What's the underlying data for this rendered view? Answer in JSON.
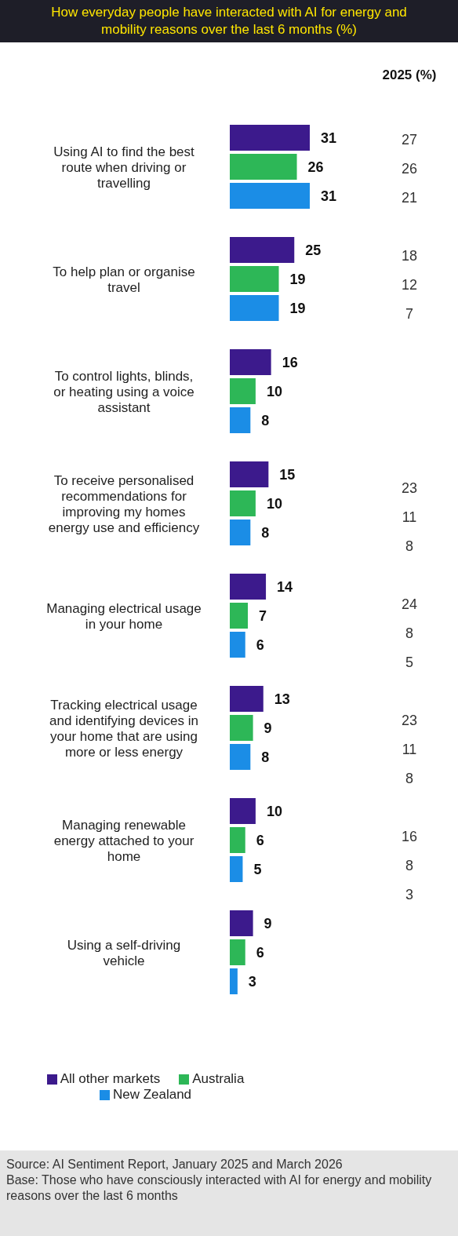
{
  "chart_data": [
    {
      "type": "bar",
      "orientation": "horizontal",
      "title": "How everyday people have interacted with AI for energy and mobility reasons over the last 6 months (%)",
      "categories": [
        "Using AI to find the best\nroute when driving or\ntravelling",
        "To help plan or organise\ntravel",
        "To control lights, blinds,\nor heating using a voice\nassistant",
        "To receive personalised\nrecommendations for\nimproving my homes\nenergy use and efficiency",
        "Managing electrical usage\nin your home",
        "Tracking electrical usage\nand identifying devices in\nyour home that are using\nmore or less energy",
        "Managing renewable\nenergy attached to your\nhome",
        "Using a self-driving\nvehicle"
      ],
      "series": [
        {
          "name": "All other markets",
          "color": "#3c1a8c",
          "values": [
            31,
            25,
            16,
            15,
            14,
            13,
            10,
            9
          ]
        },
        {
          "name": "Australia",
          "color": "#2db757",
          "values": [
            26,
            19,
            10,
            10,
            7,
            9,
            6,
            6
          ]
        },
        {
          "name": "New Zealand",
          "color": "#1b8de6",
          "values": [
            31,
            19,
            8,
            8,
            6,
            8,
            5,
            3
          ]
        }
      ],
      "data_labels": true,
      "legend": "bottom",
      "annotations": [
        "Source: AI Sentiment Report, January 2025 and March 2026",
        "Base: Those who have consciously interacted with AI for energy and mobility reasons over the last 6 months"
      ]
    },
    {
      "type": "other",
      "title": "2025 (%)",
      "values": [
        27,
        26,
        21,
        18,
        12,
        7,
        null,
        null,
        null,
        23,
        11,
        8,
        24,
        8,
        5,
        23,
        11,
        8,
        16,
        8,
        3,
        null,
        null,
        null
      ],
      "data_labels": true
    }
  ]
}
